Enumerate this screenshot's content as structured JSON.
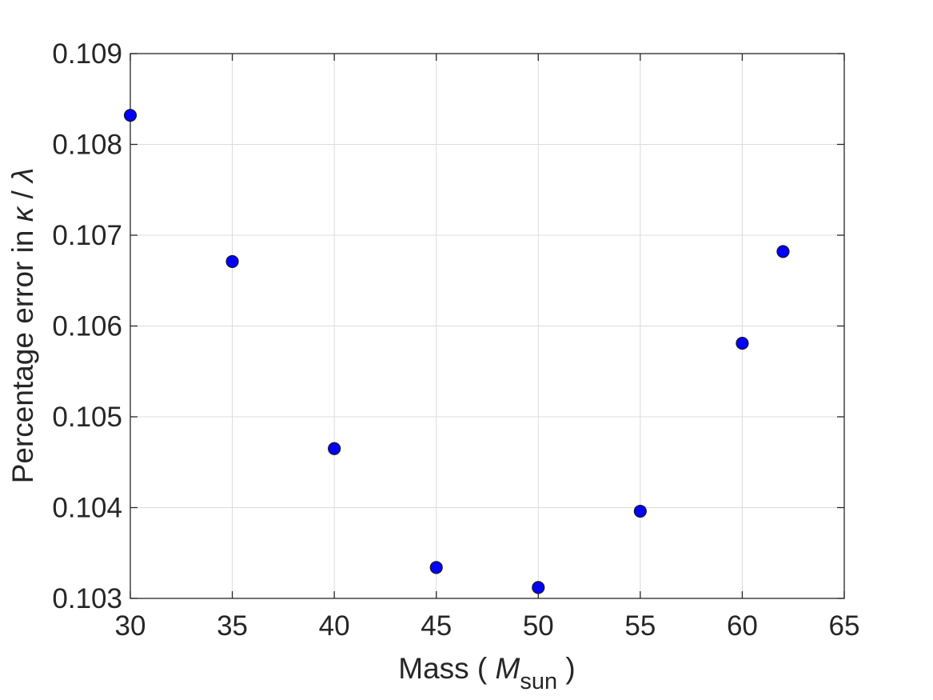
{
  "chart_data": {
    "type": "scatter",
    "xlabel_parts": {
      "prefix": "Mass ( ",
      "symbol": "M",
      "subscript": "sun",
      "suffix": " )"
    },
    "ylabel_parts": {
      "prefix": "Percentage error in ",
      "symbol1": "κ",
      "separator": " / ",
      "symbol2": "λ"
    },
    "xlim": [
      30,
      65
    ],
    "ylim": [
      0.103,
      0.109
    ],
    "xticks": [
      30,
      35,
      40,
      45,
      50,
      55,
      60,
      65
    ],
    "yticks": [
      0.103,
      0.104,
      0.105,
      0.106,
      0.107,
      0.108,
      0.109
    ],
    "grid": true,
    "marker_color": "#0000ff",
    "series": [
      {
        "x": [
          30,
          35,
          40,
          45,
          50,
          55,
          60,
          62
        ],
        "y": [
          0.10832,
          0.10671,
          0.10465,
          0.10334,
          0.10312,
          0.10396,
          0.10581,
          0.10682
        ]
      }
    ]
  }
}
